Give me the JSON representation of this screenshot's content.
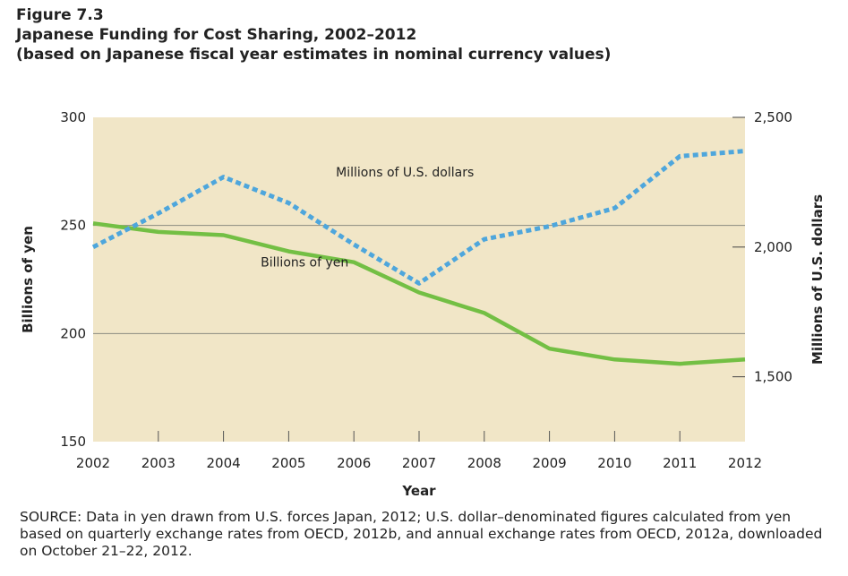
{
  "figure": {
    "number": "Figure 7.3",
    "title": "Japanese Funding for Cost Sharing, 2002–2012",
    "subtitle": "(based on Japanese fiscal year estimates in nominal currency values)"
  },
  "source_note": "SOURCE: Data in yen drawn from U.S. forces Japan, 2012; U.S. dollar–denominated figures calculated from yen based on quarterly exchange rates from OECD, 2012b, and annual exchange rates from OECD, 2012a, downloaded on October 21–22, 2012.",
  "colors": {
    "plot_background": "#f1e6c7",
    "yen_line": "#73bf44",
    "usd_line": "#4ea6dc",
    "gridline": "#8a8a80"
  },
  "chart_data": {
    "type": "line",
    "x": [
      2002,
      2003,
      2004,
      2005,
      2006,
      2007,
      2008,
      2009,
      2010,
      2011,
      2012
    ],
    "xlabel": "Year",
    "ylabel_left": "Billions of yen",
    "ylabel_right": "Millions of U.S. dollars",
    "ylim_left": [
      150,
      300
    ],
    "yticks_left": [
      150,
      200,
      250,
      300
    ],
    "ytick_labels_left": [
      "150",
      "200",
      "250",
      "300"
    ],
    "ylim_right": [
      1250,
      2500
    ],
    "yticks_right": [
      1500,
      2000,
      2500
    ],
    "ytick_labels_right": [
      "1,500",
      "2,000",
      "2,500"
    ],
    "grid": "horizontal gridlines at 200 and 250 (left axis)",
    "series": [
      {
        "name": "Billions of yen",
        "axis": "left",
        "style": "solid",
        "values": [
          251,
          247,
          245.5,
          238,
          233,
          219,
          209.5,
          193,
          188,
          186,
          188
        ]
      },
      {
        "name": "Millions of U.S. dollars",
        "axis": "right",
        "style": "dashed",
        "values": [
          2000,
          2130,
          2270,
          2170,
          2010,
          1860,
          2030,
          2080,
          2150,
          2350,
          2370
        ]
      }
    ]
  }
}
